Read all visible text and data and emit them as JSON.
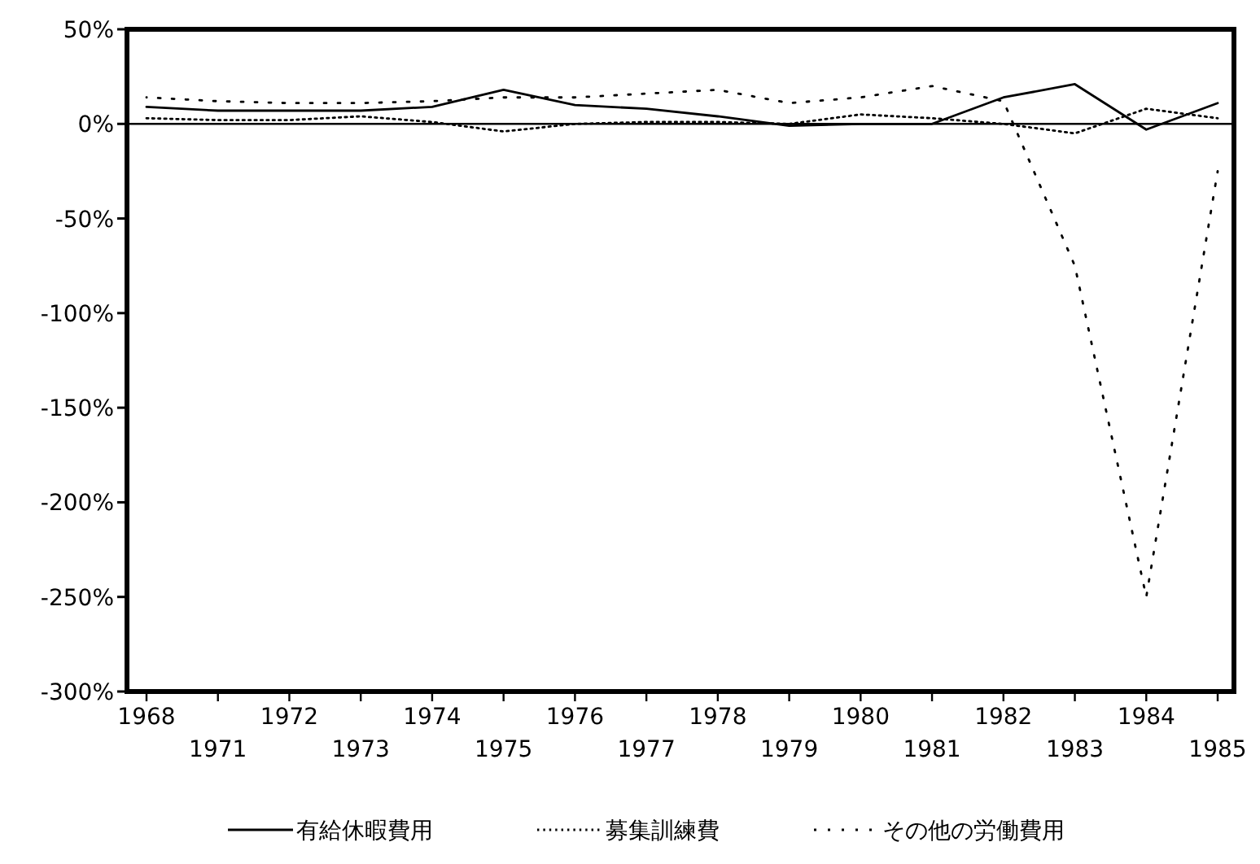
{
  "chart_data": {
    "type": "line",
    "categories": [
      "1968",
      "1971",
      "1972",
      "1973",
      "1974",
      "1975",
      "1976",
      "1977",
      "1978",
      "1979",
      "1980",
      "1981",
      "1982",
      "1983",
      "1984",
      "1985"
    ],
    "series": [
      {
        "name": "有給休暇費用",
        "color": "#000000",
        "line_style": "solid",
        "values": [
          9,
          7,
          7,
          7,
          9,
          18,
          10,
          8,
          4,
          -1,
          0,
          0,
          14,
          21,
          -3,
          11
        ]
      },
      {
        "name": "募集訓練費",
        "color": "#000000",
        "line_style": "dotted",
        "values": [
          3,
          2,
          2,
          4,
          1,
          -4,
          0,
          1,
          1,
          0,
          5,
          3,
          0,
          -5,
          8,
          3
        ]
      },
      {
        "name": "その他の労働費用",
        "color": "#000000",
        "line_style": "dashed",
        "values": [
          14,
          12,
          11,
          11,
          12,
          14,
          14,
          16,
          18,
          11,
          14,
          20,
          12,
          -75,
          -250,
          -25
        ]
      }
    ],
    "ylim": [
      -300,
      50
    ],
    "yticks": [
      {
        "value": 50,
        "label": "50%"
      },
      {
        "value": 0,
        "label": "0%"
      },
      {
        "value": -50,
        "label": "-50%"
      },
      {
        "value": -100,
        "label": "-100%"
      },
      {
        "value": -150,
        "label": "-150%"
      },
      {
        "value": -200,
        "label": "-200%"
      },
      {
        "value": -250,
        "label": "-250%"
      },
      {
        "value": -300,
        "label": "-300%"
      }
    ],
    "ref_lines": [
      {
        "axis": "y",
        "value": 0,
        "color": "#000000"
      }
    ],
    "grid": false,
    "legend": "bottom"
  }
}
